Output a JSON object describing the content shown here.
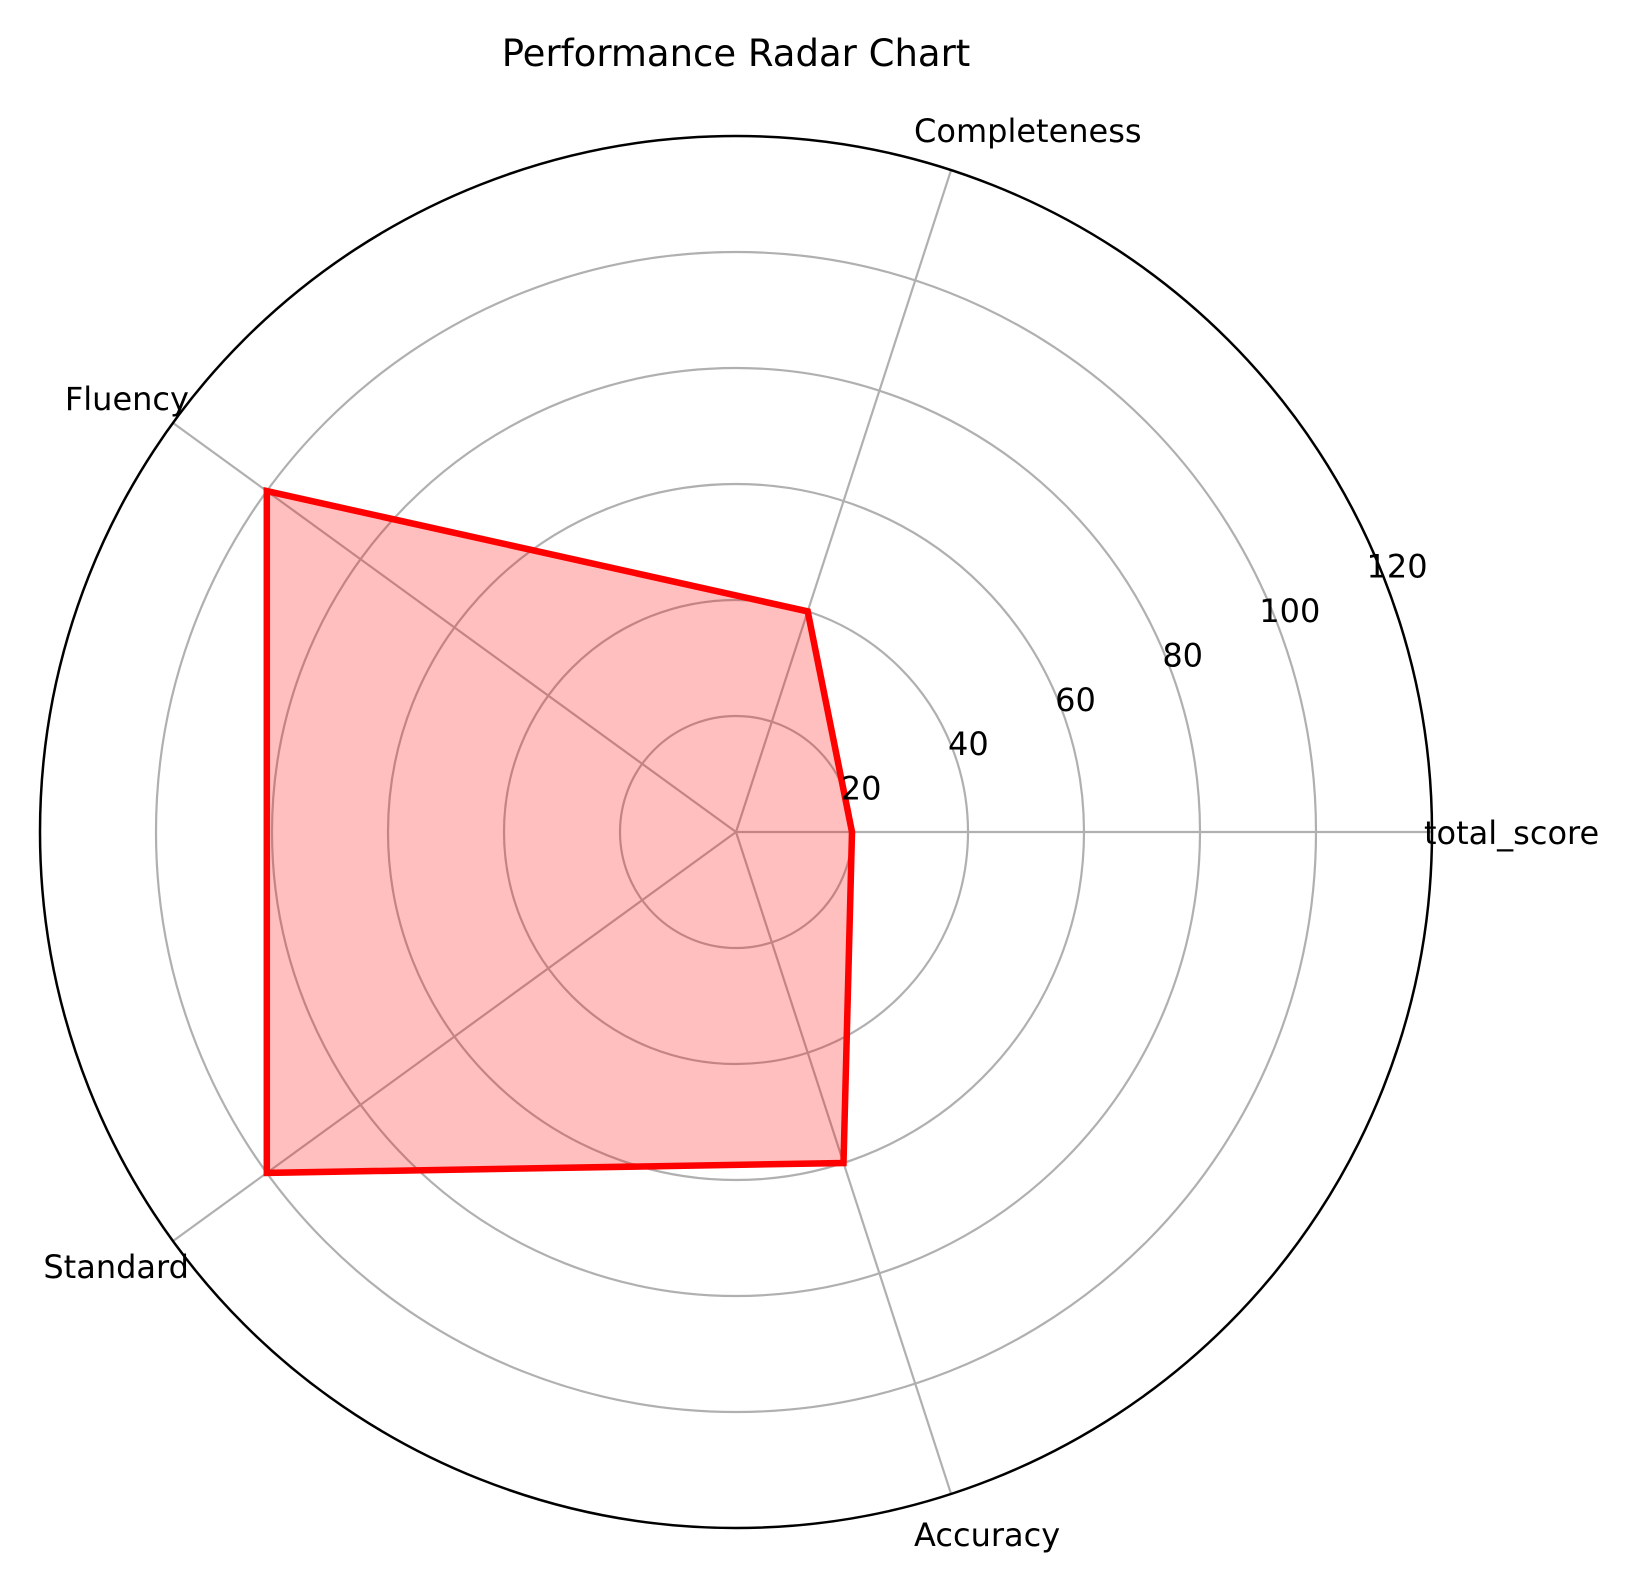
{
  "chart_data": {
    "type": "radar",
    "title": "Performance Radar Chart",
    "categories": [
      "total_score",
      "Completeness",
      "Fluency",
      "Standard",
      "Accuracy"
    ],
    "values": [
      20,
      40,
      100,
      100,
      60
    ],
    "rlim": [
      0,
      120
    ],
    "rticks": [
      20,
      40,
      60,
      80,
      100,
      120
    ],
    "rtick_labels": [
      "20",
      "40",
      "60",
      "80",
      "100",
      "120"
    ],
    "grid": true,
    "colors": {
      "line": "#ff0000",
      "fill": "#ff0000",
      "grid": "#b0b0b0",
      "outline": "#000000"
    }
  }
}
